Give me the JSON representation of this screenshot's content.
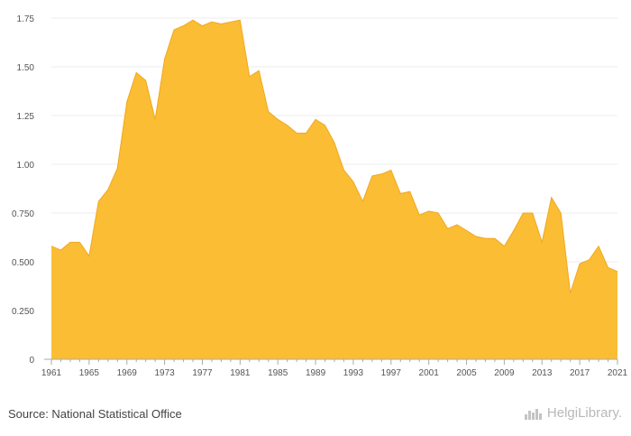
{
  "chart_data": {
    "type": "area",
    "title": "",
    "xlabel": "",
    "ylabel": "",
    "ylim": [
      0,
      1.75
    ],
    "xlim": [
      1961,
      2021
    ],
    "grid": true,
    "fill_color": "#FBBD33",
    "line_color": "#F0A820",
    "y_ticks": [
      0,
      0.25,
      0.5,
      0.75,
      1,
      1.25,
      1.5,
      1.75
    ],
    "y_tick_labels": [
      "0",
      "0.250",
      "0.500",
      "0.750",
      "1.00",
      "1.25",
      "1.50",
      "1.75"
    ],
    "x_tick_labels": [
      "1961",
      "1965",
      "1969",
      "1973",
      "1977",
      "1981",
      "1985",
      "1989",
      "1993",
      "1997",
      "2001",
      "2005",
      "2009",
      "2013",
      "2017",
      "2021"
    ],
    "x": [
      1961,
      1962,
      1963,
      1964,
      1965,
      1966,
      1967,
      1968,
      1969,
      1970,
      1971,
      1972,
      1973,
      1974,
      1975,
      1976,
      1977,
      1978,
      1979,
      1980,
      1981,
      1982,
      1983,
      1984,
      1985,
      1986,
      1987,
      1988,
      1989,
      1990,
      1991,
      1992,
      1993,
      1994,
      1995,
      1996,
      1997,
      1998,
      1999,
      2000,
      2001,
      2002,
      2003,
      2004,
      2005,
      2006,
      2007,
      2008,
      2009,
      2010,
      2011,
      2012,
      2013,
      2014,
      2015,
      2016,
      2017,
      2018,
      2019,
      2020,
      2021
    ],
    "values": [
      0.58,
      0.56,
      0.6,
      0.6,
      0.53,
      0.81,
      0.87,
      0.98,
      1.32,
      1.47,
      1.43,
      1.23,
      1.54,
      1.69,
      1.71,
      1.74,
      1.71,
      1.73,
      1.72,
      1.73,
      1.74,
      1.45,
      1.48,
      1.27,
      1.23,
      1.2,
      1.16,
      1.16,
      1.23,
      1.2,
      1.11,
      0.97,
      0.91,
      0.81,
      0.94,
      0.95,
      0.97,
      0.85,
      0.86,
      0.74,
      0.76,
      0.75,
      0.67,
      0.69,
      0.66,
      0.63,
      0.62,
      0.62,
      0.58,
      0.66,
      0.75,
      0.75,
      0.6,
      0.83,
      0.75,
      0.34,
      0.49,
      0.51,
      0.58,
      0.47,
      0.45
    ]
  },
  "footer": {
    "source": "Source: National Statistical Office",
    "brand": "HelgiLibrary."
  }
}
